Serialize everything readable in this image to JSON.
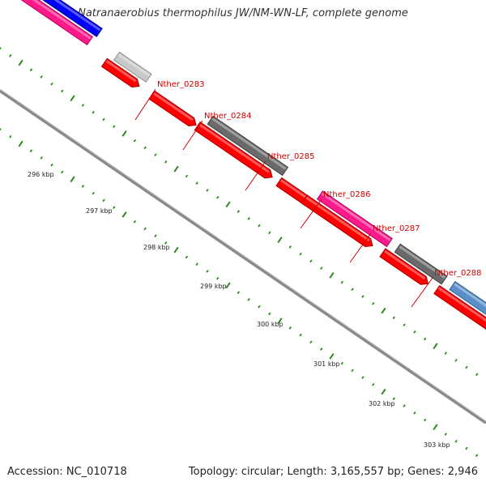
{
  "title": "Natranaerobius thermophilus JW/NM-WN-LF, complete genome",
  "footer": {
    "accession": "Accession: NC_010718",
    "summary": "Topology: circular; Length: 3,165,557 bp; Genes: 2,946"
  },
  "colors": {
    "backbone": "#8a8a8a",
    "tick": "#2a8a1a",
    "forward_red": "#ff0000",
    "label_red": "#cc0000"
  },
  "scale_labels": [
    "296 kbp",
    "297 kbp",
    "298 kbp",
    "299 kbp",
    "300 kbp",
    "301 kbp",
    "302 kbp",
    "303 kbp"
  ],
  "gene_labels": [
    "Nther_0283",
    "Nther_0284",
    "Nther_0285",
    "Nther_0286",
    "Nther_0287",
    "Nther_0288"
  ]
}
